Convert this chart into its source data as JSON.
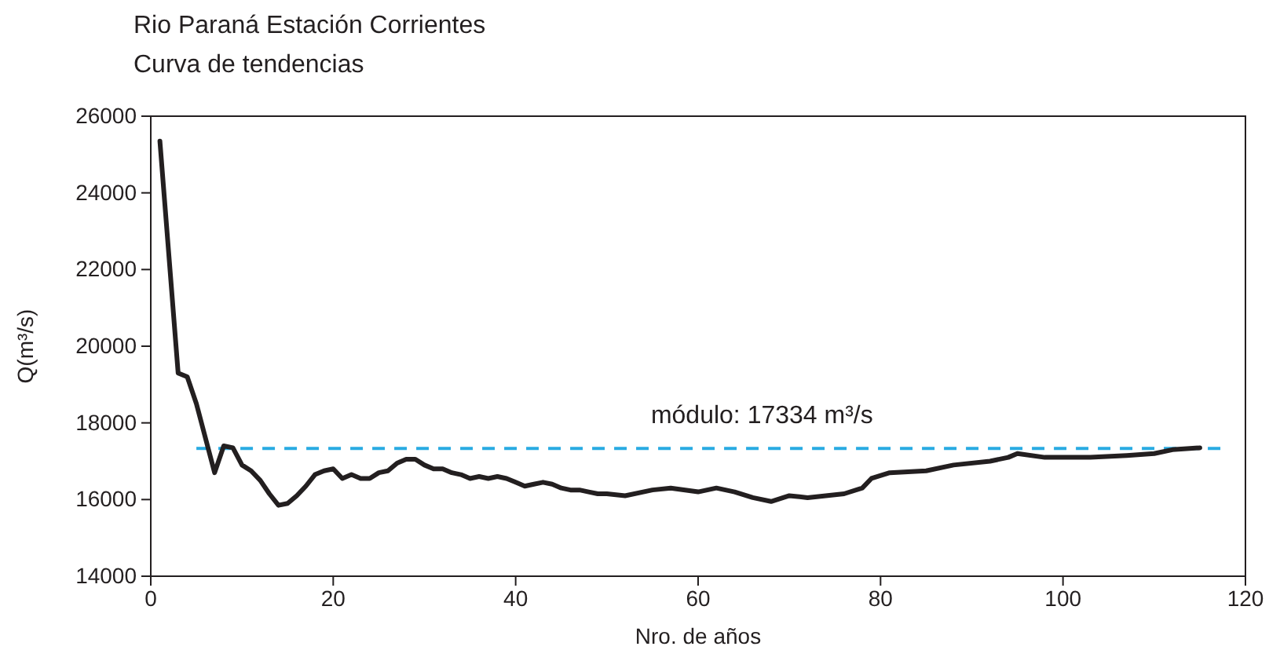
{
  "chart_data": {
    "type": "line",
    "title": "Rio Paraná Estación Corrientes",
    "subtitle": "Curva de tendencias",
    "xlabel": "Nro. de años",
    "ylabel": "Q(m³/s)",
    "x": [
      1,
      3,
      4,
      5,
      6,
      7,
      8,
      9,
      10,
      11,
      12,
      13,
      14,
      15,
      16,
      17,
      18,
      19,
      20,
      21,
      22,
      23,
      24,
      25,
      26,
      27,
      28,
      29,
      30,
      31,
      32,
      33,
      34,
      35,
      36,
      37,
      38,
      39,
      40,
      41,
      42,
      43,
      44,
      45,
      46,
      47,
      48,
      49,
      50,
      52,
      55,
      57,
      60,
      62,
      64,
      66,
      68,
      70,
      72,
      74,
      76,
      78,
      79,
      81,
      85,
      88,
      92,
      94,
      95,
      98,
      103,
      107,
      110,
      112,
      115
    ],
    "series": [
      {
        "color": "#231f20",
        "values": [
          25350,
          19300,
          19200,
          18500,
          17600,
          16700,
          17400,
          17350,
          16900,
          16750,
          16500,
          16150,
          15850,
          15900,
          16100,
          16350,
          16650,
          16750,
          16800,
          16550,
          16650,
          16550,
          16550,
          16700,
          16750,
          16950,
          17050,
          17050,
          16900,
          16800,
          16800,
          16700,
          16650,
          16550,
          16600,
          16550,
          16600,
          16550,
          16450,
          16350,
          16400,
          16450,
          16400,
          16300,
          16250,
          16250,
          16200,
          16150,
          16150,
          16100,
          16250,
          16300,
          16200,
          16300,
          16200,
          16050,
          15950,
          16100,
          16050,
          16100,
          16150,
          16300,
          16550,
          16700,
          16750,
          16900,
          17000,
          17100,
          17200,
          17100,
          17100,
          17150,
          17200,
          17300,
          17350
        ]
      }
    ],
    "xlim": [
      0,
      120
    ],
    "xticks": [
      0,
      20,
      40,
      60,
      80,
      100,
      120
    ],
    "ylim": [
      14000,
      26000
    ],
    "yticks": [
      14000,
      16000,
      18000,
      20000,
      22000,
      24000,
      26000
    ],
    "grid": false,
    "marker": "none",
    "line_style": "solid",
    "ref_lines": [
      {
        "axis": "y",
        "value": 17334,
        "label": "módulo: 17334 m³/s",
        "color": "#29abe2",
        "line_style": "dashed"
      }
    ]
  }
}
